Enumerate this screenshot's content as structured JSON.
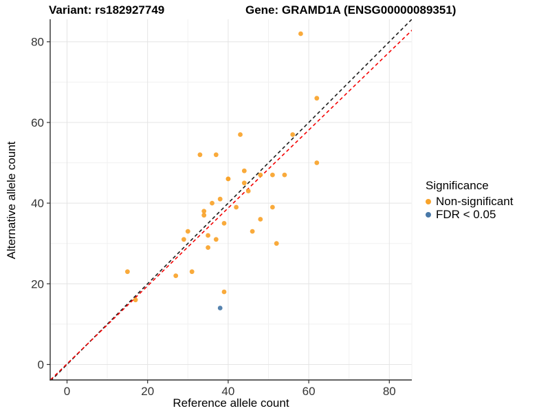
{
  "chart_data": {
    "type": "scatter",
    "title_left": "Variant: rs182927749",
    "title_right": "Gene: GRAMD1A (ENSG00000089351)",
    "xlabel": "Reference allele count",
    "ylabel": "Alternative allele count",
    "xlim": [
      -4.18,
      85.58
    ],
    "ylim": [
      -3.84,
      85.58
    ],
    "xticks": [
      0,
      20,
      40,
      60,
      80
    ],
    "yticks": [
      0,
      20,
      40,
      60,
      80
    ],
    "minor_xticks": [
      10,
      30,
      50,
      70
    ],
    "minor_yticks": [
      10,
      30,
      50,
      70
    ],
    "grid": true,
    "colors": {
      "non_significant": "#F8A32A",
      "fdr_significant": "#4878A8",
      "identity_line": "#1A1A1A",
      "fit_line": "#F40000",
      "axis_line": "#2E2E2E",
      "major_grid": "#E4E4E4",
      "minor_grid": "#F1F1F1",
      "tick_text": "#333333"
    },
    "legend": {
      "title": "Significance",
      "position": "right",
      "items": [
        {
          "label": "Non-significant",
          "color": "#F8A32A"
        },
        {
          "label": "FDR < 0.05",
          "color": "#4878A8"
        }
      ]
    },
    "series": [
      {
        "name": "Non-significant",
        "color": "#F8A32A",
        "points": [
          [
            15,
            23
          ],
          [
            17,
            16
          ],
          [
            27,
            22
          ],
          [
            31,
            23
          ],
          [
            39,
            18
          ],
          [
            29,
            31
          ],
          [
            30,
            33
          ],
          [
            35,
            29
          ],
          [
            35,
            32
          ],
          [
            37,
            31
          ],
          [
            34,
            37
          ],
          [
            34,
            38
          ],
          [
            36,
            40
          ],
          [
            38,
            41
          ],
          [
            42,
            39
          ],
          [
            39,
            35
          ],
          [
            46,
            33
          ],
          [
            48,
            36
          ],
          [
            51,
            39
          ],
          [
            52,
            30
          ],
          [
            40,
            46
          ],
          [
            40,
            46
          ],
          [
            44,
            48
          ],
          [
            44,
            45
          ],
          [
            45,
            43
          ],
          [
            48,
            47
          ],
          [
            51,
            47
          ],
          [
            54,
            47
          ],
          [
            33,
            52
          ],
          [
            37,
            52
          ],
          [
            43,
            57
          ],
          [
            56,
            57
          ],
          [
            58,
            82
          ],
          [
            62,
            66
          ],
          [
            62,
            50
          ]
        ]
      },
      {
        "name": "FDR < 0.05",
        "color": "#4878A8",
        "points": [
          [
            38,
            14
          ]
        ]
      }
    ],
    "lines": [
      {
        "name": "identity-line",
        "style": "dashed",
        "color": "#1A1A1A",
        "slope": 1,
        "intercept": 0
      },
      {
        "name": "fit-line",
        "style": "dashed",
        "color": "#F40000",
        "slope": 0.966,
        "intercept": 0.16
      }
    ]
  }
}
